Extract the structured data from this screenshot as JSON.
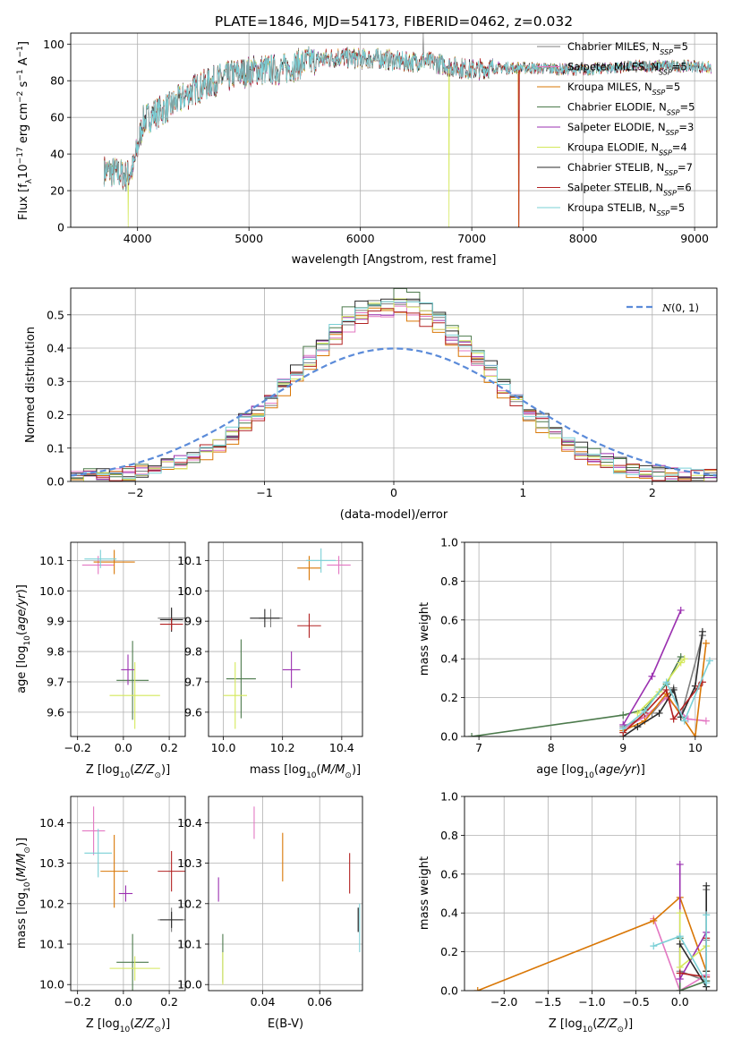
{
  "title": "PLATE=1846, MJD=54173, FIBERID=0462, z=0.032",
  "colors": [
    "#7f7f7f",
    "#e377c2",
    "#d97706",
    "#4c7a4c",
    "#9b30b0",
    "#d4e85a",
    "#2b2b2b",
    "#b22222",
    "#7ad0d6"
  ],
  "series_names": [
    "Chabrier MILES, N$_{SSP}$=5",
    "Salpeter MILES, N$_{SSP}$=5",
    "Kroupa MILES, N$_{SSP}$=5",
    "Chabrier ELODIE, N$_{SSP}$=5",
    "Salpeter ELODIE, N$_{SSP}$=3",
    "Kroupa ELODIE, N$_{SSP}$=4",
    "Chabrier STELIB, N$_{SSP}$=7",
    "Salpeter STELIB, N$_{SSP}$=6",
    "Kroupa STELIB, N$_{SSP}$=5"
  ],
  "series_labels": [
    {
      "pre": "Chabrier MILES, N",
      "sub": "SSP",
      "post": "=5"
    },
    {
      "pre": "Salpeter MILES, N",
      "sub": "SSP",
      "post": "=5"
    },
    {
      "pre": "Kroupa MILES, N",
      "sub": "SSP",
      "post": "=5"
    },
    {
      "pre": "Chabrier ELODIE, N",
      "sub": "SSP",
      "post": "=5"
    },
    {
      "pre": "Salpeter ELODIE, N",
      "sub": "SSP",
      "post": "=3"
    },
    {
      "pre": "Kroupa ELODIE, N",
      "sub": "SSP",
      "post": "=4"
    },
    {
      "pre": "Chabrier STELIB, N",
      "sub": "SSP",
      "post": "=7"
    },
    {
      "pre": "Salpeter STELIB, N",
      "sub": "SSP",
      "post": "=6"
    },
    {
      "pre": "Kroupa STELIB, N",
      "sub": "SSP",
      "post": "=5"
    }
  ],
  "labels": {
    "spec_x": "wavelength [Angstrom, rest frame]",
    "spec_y": "Flux [f$_\\lambda$10$^{-17}$ erg cm$^{-2}$ s$^{-1}$ A$^{-1}$]",
    "hist_x": "(data-model)/error",
    "hist_y": "Normed distribution",
    "hist_legend": "$\\mathcal{N}(0,1)$",
    "z": "Z [log$_{10}$(Z/Z$_\\odot$)]",
    "mass": "mass [log$_{10}$(M/M$_\\odot$)]",
    "age": "age  [log$_{10}$(age/yr)]",
    "ebv": "E(B-V)",
    "mass_weight": "mass weight"
  },
  "chart_data": [
    {
      "id": "spectrum",
      "type": "line",
      "xlim": [
        3400,
        9200
      ],
      "ylim": [
        0,
        106
      ],
      "xticks": [
        4000,
        5000,
        6000,
        7000,
        8000,
        9000
      ],
      "yticks": [
        0,
        20,
        40,
        60,
        80,
        100
      ],
      "legend": "upper right",
      "wavelength_range": [
        3700,
        9150
      ],
      "continuum": [
        [
          3700,
          31
        ],
        [
          3800,
          30
        ],
        [
          3900,
          28
        ],
        [
          3960,
          32
        ],
        [
          4050,
          58
        ],
        [
          4150,
          62
        ],
        [
          4300,
          66
        ],
        [
          4500,
          75
        ],
        [
          4700,
          80
        ],
        [
          4900,
          84
        ],
        [
          5100,
          86
        ],
        [
          5300,
          86
        ],
        [
          5500,
          90
        ],
        [
          5800,
          93
        ],
        [
          6000,
          92
        ],
        [
          6200,
          92
        ],
        [
          6400,
          90
        ],
        [
          6563,
          91
        ],
        [
          6800,
          88
        ],
        [
          7000,
          86
        ],
        [
          7200,
          87
        ],
        [
          7500,
          87
        ],
        [
          8000,
          86
        ],
        [
          8500,
          88
        ],
        [
          9000,
          88
        ],
        [
          9150,
          87
        ]
      ],
      "dropouts": [
        {
          "series": 5,
          "x": 3915
        },
        {
          "series": 5,
          "x": 6795
        },
        {
          "series": 2,
          "x": 7420
        },
        {
          "series": 7,
          "x": 7425
        }
      ],
      "peak": {
        "series": 0,
        "x": 6563,
        "y": 106
      }
    },
    {
      "id": "residuals",
      "type": "histogram",
      "xlim": [
        -2.5,
        2.5
      ],
      "ylim": [
        0,
        0.58
      ],
      "xticks": [
        -2,
        -1,
        0,
        1,
        2
      ],
      "yticks": [
        0.0,
        0.1,
        0.2,
        0.3,
        0.4,
        0.5
      ],
      "bin_width": 0.1,
      "gaussian": {
        "name": "N(0,1)",
        "mean": 0,
        "sigma": 1,
        "peak": 0.399
      },
      "amplitudes": [
        0.52,
        0.5,
        0.5,
        0.55,
        0.51,
        0.52,
        0.54,
        0.5,
        0.53
      ],
      "sigmas": [
        0.75,
        0.76,
        0.74,
        0.75,
        0.77,
        0.74,
        0.76,
        0.75,
        0.75
      ]
    },
    {
      "id": "age_vs_Z",
      "type": "errorbar",
      "xlim": [
        -0.23,
        0.27
      ],
      "ylim": [
        9.52,
        10.16
      ],
      "xticks": [
        -0.2,
        0.0,
        0.2
      ],
      "yticks": [
        9.6,
        9.7,
        9.8,
        9.9,
        10.0,
        10.1
      ],
      "points": [
        {
          "s": 0,
          "x": 0.21,
          "y": 9.91,
          "ex": 0.06,
          "ey": 0.03
        },
        {
          "s": 1,
          "x": -0.11,
          "y": 10.085,
          "ex": 0.07,
          "ey": 0.03
        },
        {
          "s": 2,
          "x": -0.04,
          "y": 10.095,
          "ex": 0.09,
          "ey": 0.04
        },
        {
          "s": 3,
          "x": 0.04,
          "y": 9.705,
          "ex": 0.07,
          "ey": 0.13
        },
        {
          "s": 4,
          "x": 0.02,
          "y": 9.74,
          "ex": 0.03,
          "ey": 0.05
        },
        {
          "s": 5,
          "x": 0.05,
          "y": 9.655,
          "ex": 0.11,
          "ey": 0.11
        },
        {
          "s": 6,
          "x": 0.21,
          "y": 9.905,
          "ex": 0.05,
          "ey": 0.04
        },
        {
          "s": 7,
          "x": 0.21,
          "y": 9.89,
          "ex": 0.05,
          "ey": 0.02
        },
        {
          "s": 8,
          "x": -0.1,
          "y": 10.105,
          "ex": 0.07,
          "ey": 0.03
        }
      ]
    },
    {
      "id": "age_vs_mass",
      "type": "errorbar",
      "xlim": [
        9.95,
        10.47
      ],
      "ylim": [
        9.52,
        10.16
      ],
      "xticks": [
        10.0,
        10.2,
        10.4
      ],
      "yticks": [
        9.6,
        9.7,
        9.8,
        9.9,
        10.0,
        10.1
      ],
      "points": [
        {
          "s": 0,
          "x": 10.16,
          "y": 9.91,
          "ex": 0.04,
          "ey": 0.03
        },
        {
          "s": 1,
          "x": 10.39,
          "y": 10.085,
          "ex": 0.04,
          "ey": 0.03
        },
        {
          "s": 2,
          "x": 10.29,
          "y": 10.075,
          "ex": 0.04,
          "ey": 0.04
        },
        {
          "s": 3,
          "x": 10.06,
          "y": 9.71,
          "ex": 0.05,
          "ey": 0.13
        },
        {
          "s": 4,
          "x": 10.23,
          "y": 9.74,
          "ex": 0.03,
          "ey": 0.06
        },
        {
          "s": 5,
          "x": 10.04,
          "y": 9.655,
          "ex": 0.04,
          "ey": 0.11
        },
        {
          "s": 6,
          "x": 10.14,
          "y": 9.91,
          "ex": 0.05,
          "ey": 0.03
        },
        {
          "s": 7,
          "x": 10.29,
          "y": 9.885,
          "ex": 0.04,
          "ey": 0.04
        },
        {
          "s": 8,
          "x": 10.33,
          "y": 10.1,
          "ex": 0.05,
          "ey": 0.04
        }
      ]
    },
    {
      "id": "weight_vs_age",
      "type": "line",
      "xlim": [
        6.8,
        10.3
      ],
      "ylim": [
        0,
        1
      ],
      "xticks": [
        7,
        8,
        9,
        10
      ],
      "yticks": [
        0.0,
        0.2,
        0.4,
        0.6,
        0.8,
        1.0
      ],
      "series": [
        {
          "s": 0,
          "x": [
            9.0,
            9.4,
            9.7,
            9.8,
            10.1
          ],
          "y": [
            0.05,
            0.12,
            0.25,
            0.1,
            0.52
          ]
        },
        {
          "s": 1,
          "x": [
            9.0,
            9.3,
            9.6,
            9.9,
            10.15
          ],
          "y": [
            0.04,
            0.1,
            0.2,
            0.09,
            0.08
          ]
        },
        {
          "s": 2,
          "x": [
            9.0,
            9.3,
            9.6,
            10.0,
            10.15
          ],
          "y": [
            0.03,
            0.08,
            0.22,
            0.0,
            0.48
          ]
        },
        {
          "s": 3,
          "x": [
            6.9,
            9.0,
            9.3,
            9.6,
            9.8
          ],
          "y": [
            0.0,
            0.11,
            0.14,
            0.27,
            0.41
          ]
        },
        {
          "s": 4,
          "x": [
            9.0,
            9.4,
            9.8
          ],
          "y": [
            0.06,
            0.31,
            0.65
          ]
        },
        {
          "s": 5,
          "x": [
            9.2,
            9.5,
            9.8,
            9.85
          ],
          "y": [
            0.12,
            0.23,
            0.38,
            0.4
          ]
        },
        {
          "s": 6,
          "x": [
            9.0,
            9.2,
            9.5,
            9.7,
            9.8,
            10.0,
            10.1
          ],
          "y": [
            0.0,
            0.05,
            0.12,
            0.24,
            0.1,
            0.26,
            0.54
          ]
        },
        {
          "s": 7,
          "x": [
            9.0,
            9.3,
            9.6,
            9.7,
            10.05,
            10.1
          ],
          "y": [
            0.02,
            0.12,
            0.24,
            0.09,
            0.26,
            0.28
          ]
        },
        {
          "s": 8,
          "x": [
            9.0,
            9.3,
            9.6,
            9.85,
            10.2
          ],
          "y": [
            0.04,
            0.13,
            0.28,
            0.08,
            0.39
          ]
        }
      ]
    },
    {
      "id": "mass_vs_Z",
      "type": "errorbar",
      "xlim": [
        -0.23,
        0.27
      ],
      "ylim": [
        9.985,
        10.465
      ],
      "xticks": [
        -0.2,
        0.0,
        0.2
      ],
      "yticks": [
        10.0,
        10.1,
        10.2,
        10.3,
        10.4
      ],
      "points": [
        {
          "s": 0,
          "x": 0.21,
          "y": 10.16,
          "ex": 0.06,
          "ey": 0.03
        },
        {
          "s": 1,
          "x": -0.13,
          "y": 10.38,
          "ex": 0.05,
          "ey": 0.06
        },
        {
          "s": 2,
          "x": -0.04,
          "y": 10.28,
          "ex": 0.06,
          "ey": 0.09
        },
        {
          "s": 3,
          "x": 0.04,
          "y": 10.055,
          "ex": 0.07,
          "ey": 0.07
        },
        {
          "s": 4,
          "x": 0.01,
          "y": 10.225,
          "ex": 0.03,
          "ey": 0.02
        },
        {
          "s": 5,
          "x": 0.05,
          "y": 10.04,
          "ex": 0.11,
          "ey": 0.03
        },
        {
          "s": 6,
          "x": 0.21,
          "y": 10.16,
          "ex": 0.05,
          "ey": 0.02
        },
        {
          "s": 7,
          "x": 0.21,
          "y": 10.28,
          "ex": 0.06,
          "ey": 0.05
        },
        {
          "s": 8,
          "x": -0.11,
          "y": 10.325,
          "ex": 0.06,
          "ey": 0.06
        }
      ]
    },
    {
      "id": "mass_vs_ebv",
      "type": "errorbar",
      "xlim": [
        0.021,
        0.075
      ],
      "ylim": [
        9.985,
        10.465
      ],
      "xticks": [
        0.04,
        0.06
      ],
      "yticks": [
        10.0,
        10.1,
        10.2,
        10.3,
        10.4
      ],
      "points": [
        {
          "s": 0,
          "x": 0.0735,
          "y": 10.16,
          "ey": 0.03
        },
        {
          "s": 1,
          "x": 0.037,
          "y": 10.4,
          "ey": 0.04
        },
        {
          "s": 2,
          "x": 0.047,
          "y": 10.315,
          "ey": 0.06
        },
        {
          "s": 3,
          "x": 0.026,
          "y": 10.065,
          "ey": 0.06
        },
        {
          "s": 4,
          "x": 0.0245,
          "y": 10.235,
          "ey": 0.03
        },
        {
          "s": 5,
          "x": 0.026,
          "y": 10.04,
          "ey": 0.04
        },
        {
          "s": 6,
          "x": 0.0735,
          "y": 10.16,
          "ey": 0.03
        },
        {
          "s": 7,
          "x": 0.0705,
          "y": 10.275,
          "ey": 0.05
        },
        {
          "s": 8,
          "x": 0.074,
          "y": 10.14,
          "ey": 0.06
        }
      ]
    },
    {
      "id": "weight_vs_Z",
      "type": "line",
      "xlim": [
        -2.45,
        0.42
      ],
      "ylim": [
        0,
        1
      ],
      "xticks": [
        -2.0,
        -1.5,
        -1.0,
        -0.5,
        0.0
      ],
      "yticks": [
        0.0,
        0.2,
        0.4,
        0.6,
        0.8,
        1.0
      ],
      "series": [
        {
          "s": 0,
          "x": [
            0.0,
            0.3,
            0.3,
            0.3
          ],
          "y": [
            0.1,
            0.05,
            0.52,
            0.26
          ]
        },
        {
          "s": 1,
          "x": [
            -0.3,
            0.0,
            0.3
          ],
          "y": [
            0.37,
            0.0,
            0.08
          ]
        },
        {
          "s": 2,
          "x": [
            -2.3,
            -0.3,
            0.0,
            0.3
          ],
          "y": [
            0.0,
            0.36,
            0.48,
            0.1
          ]
        },
        {
          "s": 3,
          "x": [
            0.0,
            0.0,
            0.3
          ],
          "y": [
            0.27,
            0.0,
            0.05
          ]
        },
        {
          "s": 4,
          "x": [
            0.0,
            0.0,
            0.3
          ],
          "y": [
            0.65,
            0.06,
            0.3
          ]
        },
        {
          "s": 5,
          "x": [
            0.0,
            0.0,
            0.3
          ],
          "y": [
            0.4,
            0.12,
            0.23
          ]
        },
        {
          "s": 6,
          "x": [
            0.0,
            0.3,
            0.3,
            0.3
          ],
          "y": [
            0.24,
            0.02,
            0.54,
            0.1
          ]
        },
        {
          "s": 7,
          "x": [
            0.0,
            0.3,
            0.3
          ],
          "y": [
            0.09,
            0.07,
            0.27
          ]
        },
        {
          "s": 8,
          "x": [
            -0.3,
            0.0,
            0.3,
            0.3
          ],
          "y": [
            0.23,
            0.28,
            0.04,
            0.39
          ]
        }
      ]
    }
  ]
}
